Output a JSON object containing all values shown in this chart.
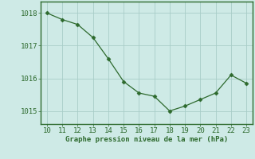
{
  "x": [
    10,
    11,
    12,
    13,
    14,
    15,
    16,
    17,
    18,
    19,
    20,
    21,
    22,
    23
  ],
  "y": [
    1018.0,
    1017.8,
    1017.65,
    1017.25,
    1016.6,
    1015.9,
    1015.55,
    1015.45,
    1015.0,
    1015.15,
    1015.35,
    1015.55,
    1016.1,
    1015.85
  ],
  "line_color": "#2d6a2d",
  "marker_color": "#2d6a2d",
  "bg_color": "#ceeae6",
  "grid_color": "#a8cdc8",
  "border_color": "#2d6a2d",
  "xlabel": "Graphe pression niveau de la mer (hPa)",
  "xlabel_color": "#2d6a2d",
  "xlabel_fontsize": 6.5,
  "tick_color": "#2d6a2d",
  "tick_fontsize": 6.5,
  "ylim": [
    1014.6,
    1018.35
  ],
  "xlim": [
    9.6,
    23.4
  ],
  "yticks": [
    1015,
    1016,
    1017,
    1018
  ],
  "xticks": [
    10,
    11,
    12,
    13,
    14,
    15,
    16,
    17,
    18,
    19,
    20,
    21,
    22,
    23
  ]
}
